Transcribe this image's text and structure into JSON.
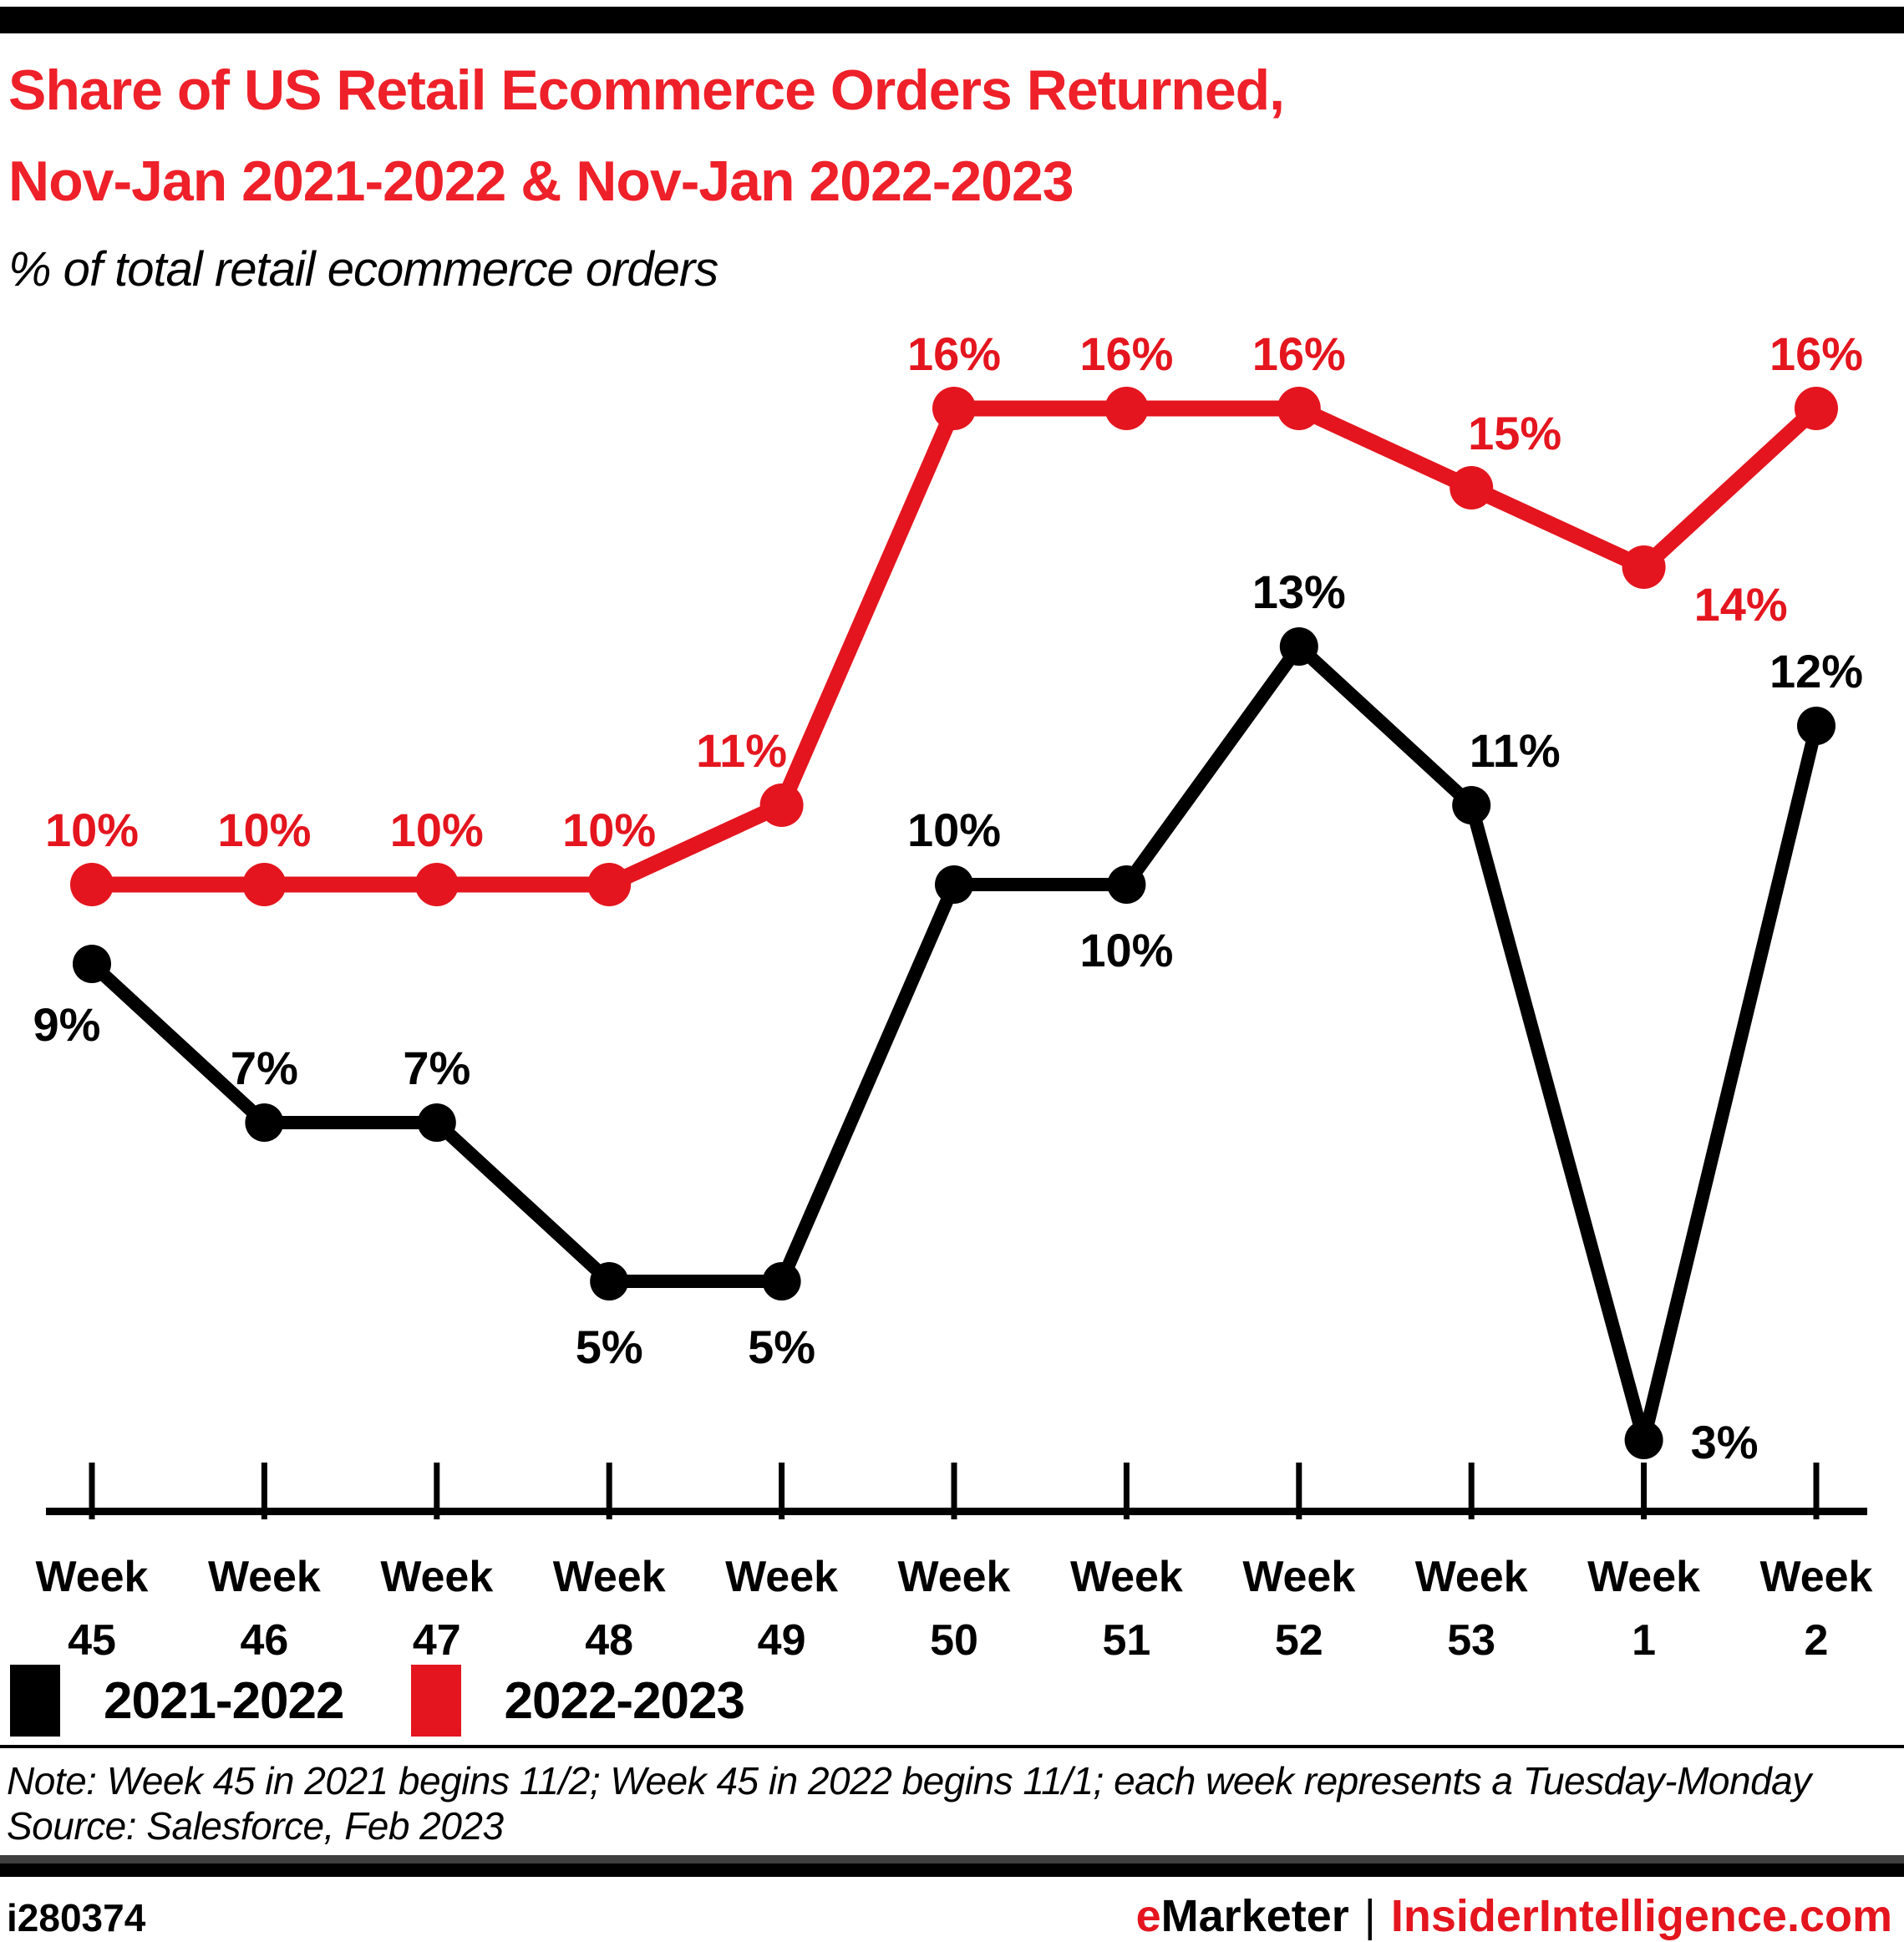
{
  "header": {
    "title_line1": "Share of US Retail Ecommerce Orders Returned,",
    "title_line2": "Nov-Jan 2021-2022 & Nov-Jan 2022-2023",
    "subtitle": "% of total retail ecommerce orders"
  },
  "colors": {
    "title_red": "#ee2029",
    "series_red": "#e4151e",
    "series_black": "#000000",
    "footer_bar_gray": "#3f3f3f"
  },
  "chart_data": {
    "type": "line",
    "week_word": "Week",
    "categories": [
      "45",
      "46",
      "47",
      "48",
      "49",
      "50",
      "51",
      "52",
      "53",
      "1",
      "2"
    ],
    "series": [
      {
        "name": "2021-2022",
        "color": "#000000",
        "values": [
          9,
          7,
          7,
          5,
          5,
          10,
          10,
          13,
          11,
          3,
          12
        ],
        "data_labels": [
          "9%",
          "7%",
          "7%",
          "5%",
          "5%",
          "10%",
          "10%",
          "13%",
          "11%",
          "3%",
          "12%"
        ],
        "label_positions": [
          "below-left",
          "above",
          "above",
          "below",
          "below",
          "above",
          "below",
          "above",
          "above-right",
          "right",
          "above"
        ]
      },
      {
        "name": "2022-2023",
        "color": "#e4151e",
        "values": [
          10,
          10,
          10,
          10,
          11,
          16,
          16,
          16,
          15,
          14,
          16
        ],
        "data_labels": [
          "10%",
          "10%",
          "10%",
          "10%",
          "11%",
          "16%",
          "16%",
          "16%",
          "15%",
          "14%",
          "16%"
        ],
        "label_positions": [
          "above",
          "above",
          "above",
          "above",
          "above-left",
          "above",
          "above",
          "above",
          "above-right",
          "right-below",
          "above"
        ]
      }
    ],
    "ylim": [
      2,
      17.5
    ],
    "grid": false,
    "legend_position": "bottom-left",
    "title": "Share of US Retail Ecommerce Orders Returned, Nov-Jan 2021-2022 & Nov-Jan 2022-2023",
    "xlabel": "",
    "ylabel": "% of total retail ecommerce orders"
  },
  "notes": {
    "note": "Note: Week 45 in 2021 begins 11/2; Week 45 in 2022 begins 11/1; each week represents a Tuesday-Monday",
    "source": "Source: Salesforce, Feb 2023"
  },
  "footer": {
    "chart_id": "i280374",
    "brand_e": "e",
    "brand_rest": "Marketer",
    "separator": "|",
    "site": "InsiderIntelligence.com"
  }
}
